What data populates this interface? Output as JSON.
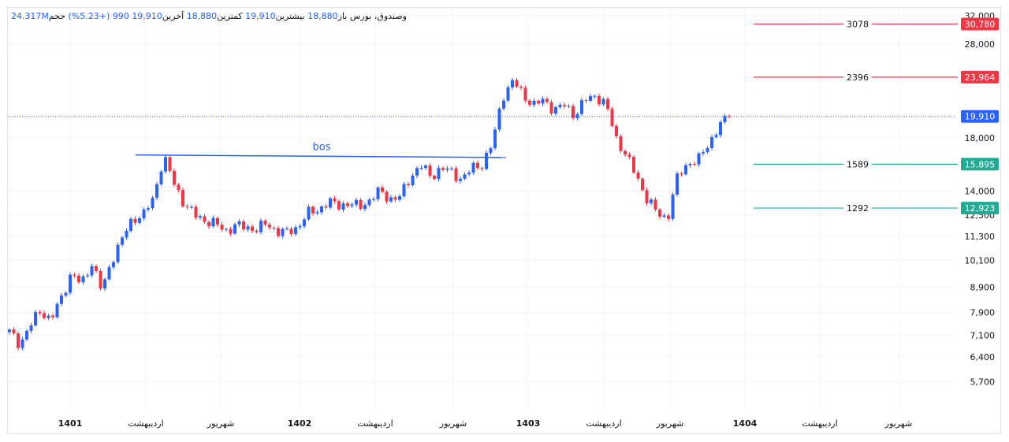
{
  "header": {
    "symbol_name": "وصندوق، بورس",
    "open_label": "باز",
    "open_value": "18,880",
    "high_label": "بیشترین",
    "high_value": "19,910",
    "low_label": "کمترین",
    "low_value": "18,880",
    "close_label": "آخرین",
    "close_value": "19,910",
    "change_text": "990 (+5.23%)",
    "volume_label": "حجم",
    "volume_value": "24.317M"
  },
  "colors": {
    "up": "#2962ff",
    "down": "#f23645",
    "green": "#22ab94",
    "grid": "#f0f3fa",
    "axis_text": "#131722",
    "bos_line": "#2962ff"
  },
  "chart_data": {
    "type": "candlestick",
    "y_scale": "log",
    "ylim": [
      5300,
      32000
    ],
    "y_ticks": [
      {
        "value": 32000,
        "label": "32,000"
      },
      {
        "value": 28000,
        "label": "28,000"
      },
      {
        "value": 18000,
        "label": "18,000"
      },
      {
        "value": 14000,
        "label": "14,000"
      },
      {
        "value": 12500,
        "label": "12,500"
      },
      {
        "value": 11300,
        "label": "11,300"
      },
      {
        "value": 10100,
        "label": "10,100"
      },
      {
        "value": 8900,
        "label": "8,900"
      },
      {
        "value": 7900,
        "label": "7,900"
      },
      {
        "value": 7100,
        "label": "7,100"
      },
      {
        "value": 6400,
        "label": "6,400"
      },
      {
        "value": 5700,
        "label": "5,700"
      }
    ],
    "x_ticks": [
      {
        "label": "1401",
        "bold": true
      },
      {
        "label": "اردیبهشت",
        "bold": false
      },
      {
        "label": "شهریور",
        "bold": false
      },
      {
        "label": "1402",
        "bold": true
      },
      {
        "label": "اردیبهشت",
        "bold": false
      },
      {
        "label": "شهریور",
        "bold": false
      },
      {
        "label": "1403",
        "bold": true
      },
      {
        "label": "اردیبهشت",
        "bold": false
      },
      {
        "label": "شهریور",
        "bold": false
      },
      {
        "label": "1404",
        "bold": true
      },
      {
        "label": "اردیبهشت",
        "bold": false
      },
      {
        "label": "شهریور",
        "bold": false
      }
    ],
    "price_levels": [
      {
        "value": 30780,
        "label": "30,780",
        "annotation": "3078",
        "color": "red"
      },
      {
        "value": 23964,
        "label": "23,964",
        "annotation": "2396",
        "color": "red"
      },
      {
        "value": 15895,
        "label": "15,895",
        "annotation": "1589",
        "color": "green"
      },
      {
        "value": 12923,
        "label": "12,923",
        "annotation": "1292",
        "color": "green"
      }
    ],
    "last_price": {
      "value": 19910,
      "label": "19,910"
    },
    "bos": {
      "label": "bos",
      "value_start": 16600,
      "value_end": 16400
    },
    "close_path": [
      7200,
      6800,
      7400,
      8000,
      7600,
      8400,
      9500,
      9000,
      10000,
      8700,
      10200,
      11200,
      12300,
      12500,
      13500,
      16500,
      14500,
      13200,
      12500,
      12200,
      12000,
      11600,
      11900,
      11800,
      11700,
      12000,
      11600,
      11500,
      11800,
      12600,
      12800,
      13300,
      13100,
      13200,
      13000,
      13400,
      14000,
      13500,
      13600,
      15000,
      15800,
      15000,
      15600,
      15300,
      14800,
      15600,
      15900,
      17500,
      22000,
      23500,
      22000,
      21000,
      21500,
      20500,
      21000,
      20000,
      21500,
      22000,
      21000,
      18000,
      16500,
      15000,
      13500,
      12600,
      12300,
      15000,
      16000,
      16200,
      17500,
      19000,
      19910
    ]
  }
}
